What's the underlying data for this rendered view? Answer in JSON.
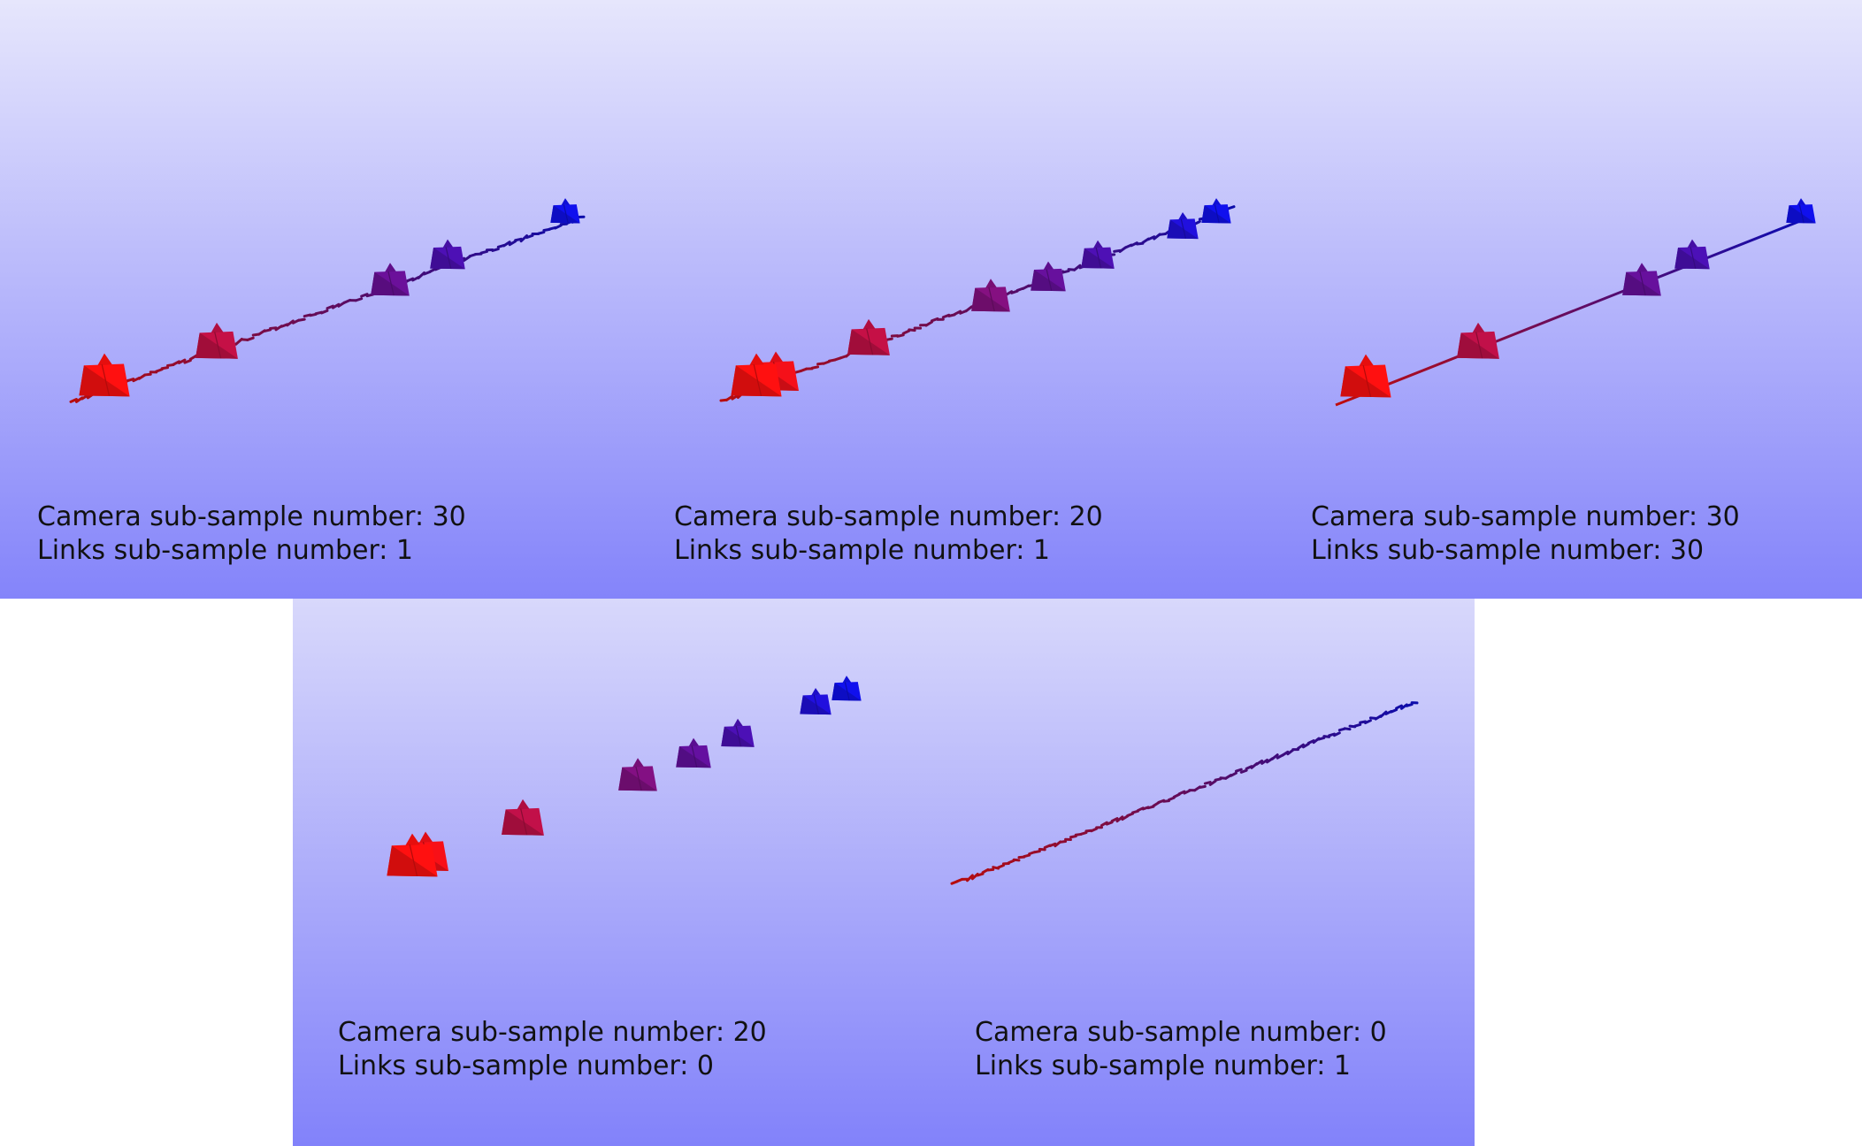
{
  "panels": [
    {
      "id": "top-left",
      "camera_label": "Camera sub-sample number: 30",
      "links_label": "Links sub-sample number: 1",
      "show_cameras": true,
      "show_links": true,
      "link_style": "jagged"
    },
    {
      "id": "top-middle",
      "camera_label": "Camera sub-sample number: 20",
      "links_label": "Links sub-sample number: 1",
      "show_cameras": true,
      "show_links": true,
      "link_style": "jagged"
    },
    {
      "id": "top-right",
      "camera_label": "Camera sub-sample number: 30",
      "links_label": "Links sub-sample number: 30",
      "show_cameras": true,
      "show_links": true,
      "link_style": "straight"
    },
    {
      "id": "bottom-left",
      "camera_label": "Camera sub-sample number: 20",
      "links_label": "Links sub-sample number: 0",
      "show_cameras": true,
      "show_links": false,
      "link_style": "none"
    },
    {
      "id": "bottom-right",
      "camera_label": "Camera sub-sample number: 0",
      "links_label": "Links sub-sample number: 1",
      "show_cameras": false,
      "show_links": true,
      "link_style": "jagged"
    }
  ],
  "colors": {
    "start": "#ff1010",
    "end": "#1010ee",
    "background_top": "#e6e6fc",
    "background_bottom": "#8484fa",
    "text": "#111111"
  }
}
